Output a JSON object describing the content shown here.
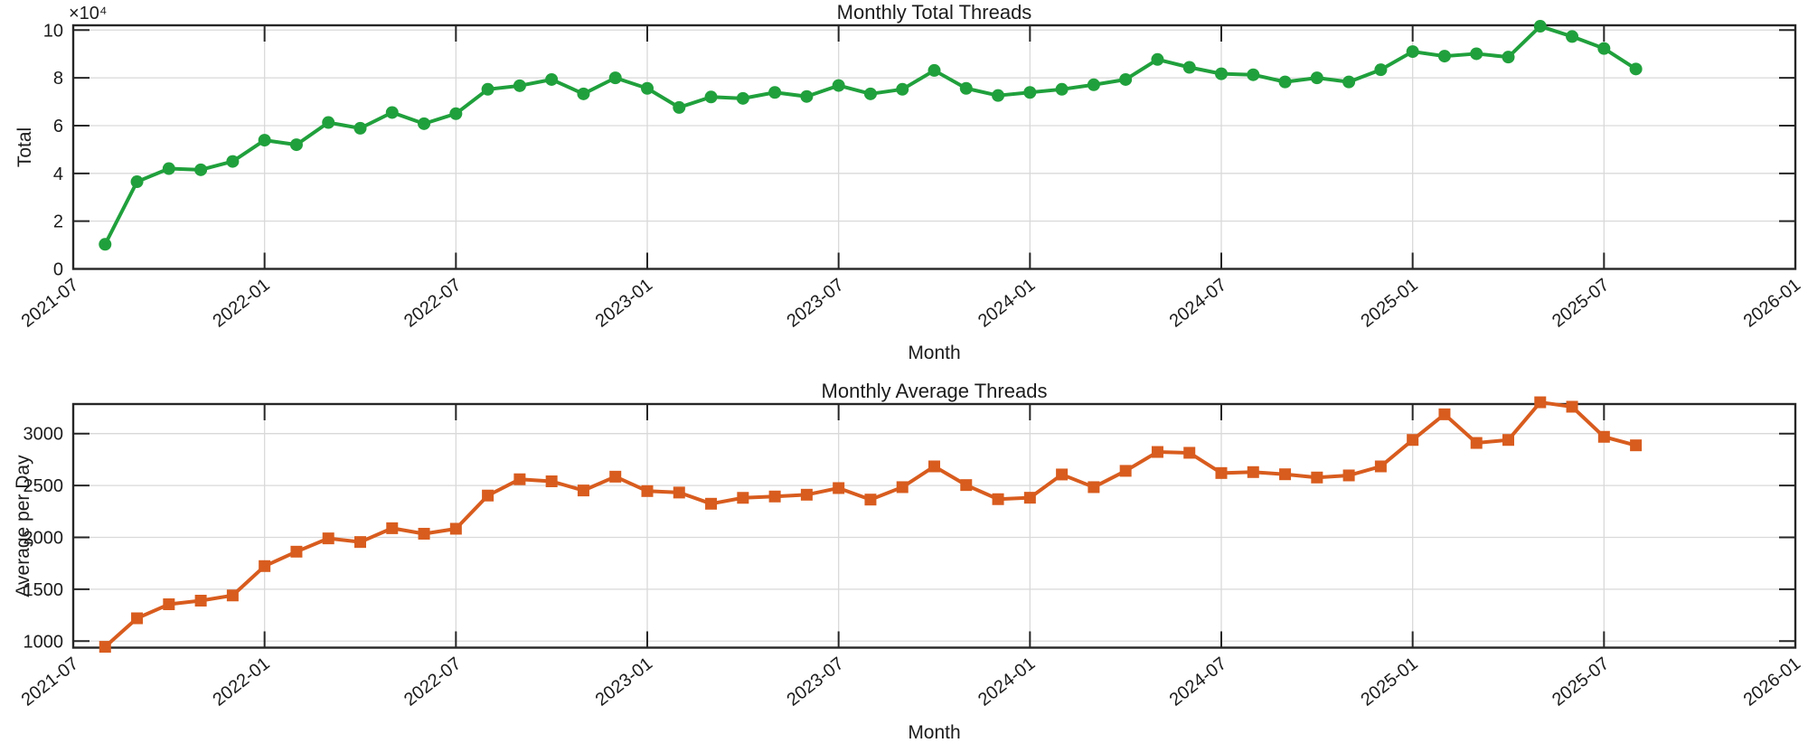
{
  "figure": {
    "background": "#ffffff"
  },
  "labels": {
    "top_title": "Monthly Total Threads",
    "top_ylabel": "Total",
    "top_xlabel": "Month",
    "y_offset": "×10⁴",
    "bottom_title": "Monthly Average Threads",
    "bottom_ylabel": "Average per Day",
    "bottom_xlabel": "Month"
  },
  "colors": {
    "green_series": "#20a03c",
    "orange_series": "#d85c1e",
    "grid": "#d9d9d9",
    "axis": "#262626",
    "text": "#1c1c1c"
  },
  "x_axis": {
    "label": "Month",
    "tick_labels": [
      "2021-07",
      "2022-01",
      "2022-07",
      "2023-01",
      "2023-07",
      "2024-01",
      "2024-07",
      "2025-01",
      "2025-07",
      "2026-01"
    ],
    "tick_angle_deg": 38,
    "range_months": [
      "2021-07",
      "2026-01"
    ]
  },
  "chart_data": [
    {
      "type": "line",
      "title": "Monthly Total Threads",
      "xlabel": "Month",
      "ylabel": "Total",
      "y_offset_label": "×10⁴",
      "marker": "circle",
      "color": "#20a03c",
      "grid": true,
      "ylim": [
        0,
        102000
      ],
      "yticks": [
        0,
        20000,
        40000,
        60000,
        80000,
        100000
      ],
      "ytick_labels": [
        "0",
        "2",
        "4",
        "6",
        "8",
        "10"
      ],
      "xtick_labels": [
        "2021-07",
        "2022-01",
        "2022-07",
        "2023-01",
        "2023-07",
        "2024-01",
        "2024-07",
        "2025-01",
        "2025-07",
        "2026-01"
      ],
      "x": [
        "2021-08",
        "2021-09",
        "2021-10",
        "2021-11",
        "2021-12",
        "2022-01",
        "2022-02",
        "2022-03",
        "2022-04",
        "2022-05",
        "2022-06",
        "2022-07",
        "2022-08",
        "2022-09",
        "2022-10",
        "2022-11",
        "2022-12",
        "2023-01",
        "2023-02",
        "2023-03",
        "2023-04",
        "2023-05",
        "2023-06",
        "2023-07",
        "2023-08",
        "2023-09",
        "2023-10",
        "2023-11",
        "2023-12",
        "2024-01",
        "2024-02",
        "2024-03",
        "2024-04",
        "2024-05",
        "2024-06",
        "2024-07",
        "2024-08",
        "2024-09",
        "2024-10",
        "2024-11",
        "2024-12",
        "2025-01",
        "2025-02",
        "2025-03",
        "2025-04",
        "2025-05",
        "2025-06",
        "2025-07",
        "2025-08"
      ],
      "values": [
        10300,
        36500,
        42000,
        41500,
        45000,
        53900,
        52000,
        61300,
        58900,
        65500,
        60800,
        65000,
        75200,
        76700,
        79300,
        73300,
        80000,
        75600,
        67600,
        72000,
        71400,
        73900,
        72200,
        76800,
        73300,
        75200,
        83100,
        75600,
        72600,
        73900,
        75200,
        77100,
        79300,
        87700,
        84400,
        81700,
        81300,
        78300,
        80000,
        78300,
        83400,
        91000,
        89100,
        90100,
        88700,
        101600,
        97300,
        92300,
        83700
      ]
    },
    {
      "type": "line",
      "title": "Monthly Average Threads",
      "xlabel": "Month",
      "ylabel": "Average per Day",
      "marker": "square",
      "color": "#d85c1e",
      "grid": true,
      "ylim": [
        937,
        3285
      ],
      "yticks": [
        1000,
        1500,
        2000,
        2500,
        3000
      ],
      "ytick_labels": [
        "1000",
        "1500",
        "2000",
        "2500",
        "3000"
      ],
      "xtick_labels": [
        "2021-07",
        "2022-01",
        "2022-07",
        "2023-01",
        "2023-07",
        "2024-01",
        "2024-07",
        "2025-01",
        "2025-07",
        "2026-01"
      ],
      "x": [
        "2021-08",
        "2021-09",
        "2021-10",
        "2021-11",
        "2021-12",
        "2022-01",
        "2022-02",
        "2022-03",
        "2022-04",
        "2022-05",
        "2022-06",
        "2022-07",
        "2022-08",
        "2022-09",
        "2022-10",
        "2022-11",
        "2022-12",
        "2023-01",
        "2023-02",
        "2023-03",
        "2023-04",
        "2023-05",
        "2023-06",
        "2023-07",
        "2023-08",
        "2023-09",
        "2023-10",
        "2023-11",
        "2023-12",
        "2024-01",
        "2024-02",
        "2024-03",
        "2024-04",
        "2024-05",
        "2024-06",
        "2024-07",
        "2024-08",
        "2024-09",
        "2024-10",
        "2024-11",
        "2024-12",
        "2025-01",
        "2025-02",
        "2025-03",
        "2025-04",
        "2025-05",
        "2025-06",
        "2025-07",
        "2025-08"
      ],
      "values": [
        945,
        1220,
        1355,
        1390,
        1440,
        1723,
        1862,
        1990,
        1955,
        2088,
        2035,
        2083,
        2403,
        2560,
        2540,
        2452,
        2585,
        2446,
        2432,
        2324,
        2381,
        2394,
        2411,
        2475,
        2364,
        2484,
        2684,
        2504,
        2368,
        2382,
        2606,
        2484,
        2641,
        2823,
        2815,
        2620,
        2629,
        2608,
        2577,
        2597,
        2684,
        2939,
        3186,
        2910,
        2939,
        3302,
        3259,
        2969,
        2887
      ]
    }
  ]
}
